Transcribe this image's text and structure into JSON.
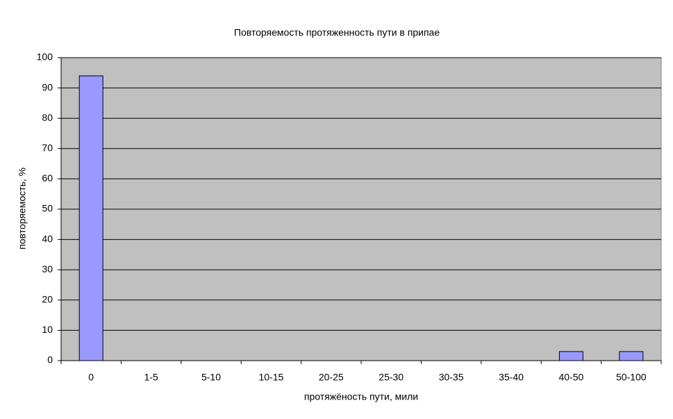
{
  "chart_data": {
    "type": "bar",
    "title": "Повторяемость протяженность пути в припае",
    "x_label": "протяжёность пути, мили",
    "y_label": "повторяемость, %",
    "categories": [
      "0",
      "1-5",
      "5-10",
      "10-15",
      "20-25",
      "25-30",
      "30-35",
      "35-40",
      "40-50",
      "50-100"
    ],
    "values": [
      94,
      0,
      0,
      0,
      0,
      0,
      0,
      0,
      3,
      3
    ],
    "color": "#9999ff",
    "ylim": [
      0,
      100
    ],
    "yticks": [
      0,
      10,
      20,
      30,
      40,
      50,
      60,
      70,
      80,
      90,
      100
    ],
    "grid": true
  }
}
